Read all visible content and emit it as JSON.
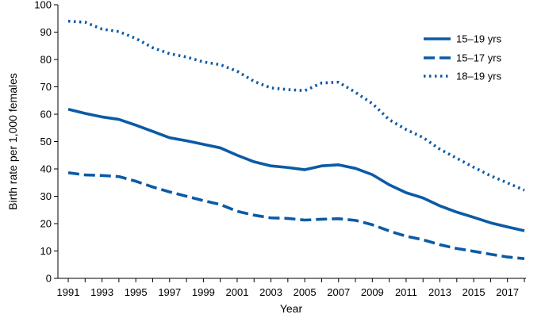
{
  "chart_data": {
    "type": "line",
    "title": "",
    "xlabel": "Year",
    "ylabel": "Birth rate per 1,000 females",
    "xlim": [
      1991,
      2018
    ],
    "ylim": [
      0,
      100
    ],
    "yticks": [
      0,
      10,
      20,
      30,
      40,
      50,
      60,
      70,
      80,
      90,
      100
    ],
    "xticks": [
      1991,
      1993,
      1995,
      1997,
      1999,
      2001,
      2003,
      2005,
      2007,
      2009,
      2011,
      2013,
      2015,
      2017
    ],
    "grid": false,
    "legend_position": "top-right",
    "x": [
      1991,
      1992,
      1993,
      1994,
      1995,
      1996,
      1997,
      1998,
      1999,
      2000,
      2001,
      2002,
      2003,
      2004,
      2005,
      2006,
      2007,
      2008,
      2009,
      2010,
      2011,
      2012,
      2013,
      2014,
      2015,
      2016,
      2017,
      2018
    ],
    "series": [
      {
        "name": "15–19 yrs",
        "style": "solid",
        "color": "#0b5aa6",
        "values": [
          61.8,
          60.3,
          59.0,
          58.1,
          56.0,
          53.7,
          51.4,
          50.3,
          49.0,
          47.7,
          45.0,
          42.6,
          41.1,
          40.5,
          39.7,
          41.1,
          41.5,
          40.2,
          37.9,
          34.2,
          31.3,
          29.4,
          26.5,
          24.2,
          22.3,
          20.3,
          18.8,
          17.4
        ]
      },
      {
        "name": "15–17 yrs",
        "style": "dashed",
        "color": "#0b5aa6",
        "values": [
          38.6,
          37.8,
          37.6,
          37.2,
          35.5,
          33.4,
          31.6,
          30.0,
          28.4,
          27.0,
          24.5,
          23.1,
          22.1,
          21.9,
          21.3,
          21.6,
          21.8,
          21.2,
          19.6,
          17.3,
          15.4,
          14.1,
          12.3,
          10.9,
          9.9,
          8.8,
          7.8,
          7.2
        ]
      },
      {
        "name": "18–19 yrs",
        "style": "dotted",
        "color": "#0b5aa6",
        "values": [
          94.0,
          93.6,
          91.1,
          90.2,
          87.7,
          84.3,
          82.1,
          80.9,
          79.1,
          78.1,
          75.7,
          72.0,
          69.6,
          69.0,
          68.6,
          71.4,
          71.7,
          68.0,
          63.9,
          58.0,
          54.4,
          51.5,
          47.2,
          43.9,
          40.6,
          37.5,
          34.9,
          32.2
        ]
      }
    ]
  }
}
